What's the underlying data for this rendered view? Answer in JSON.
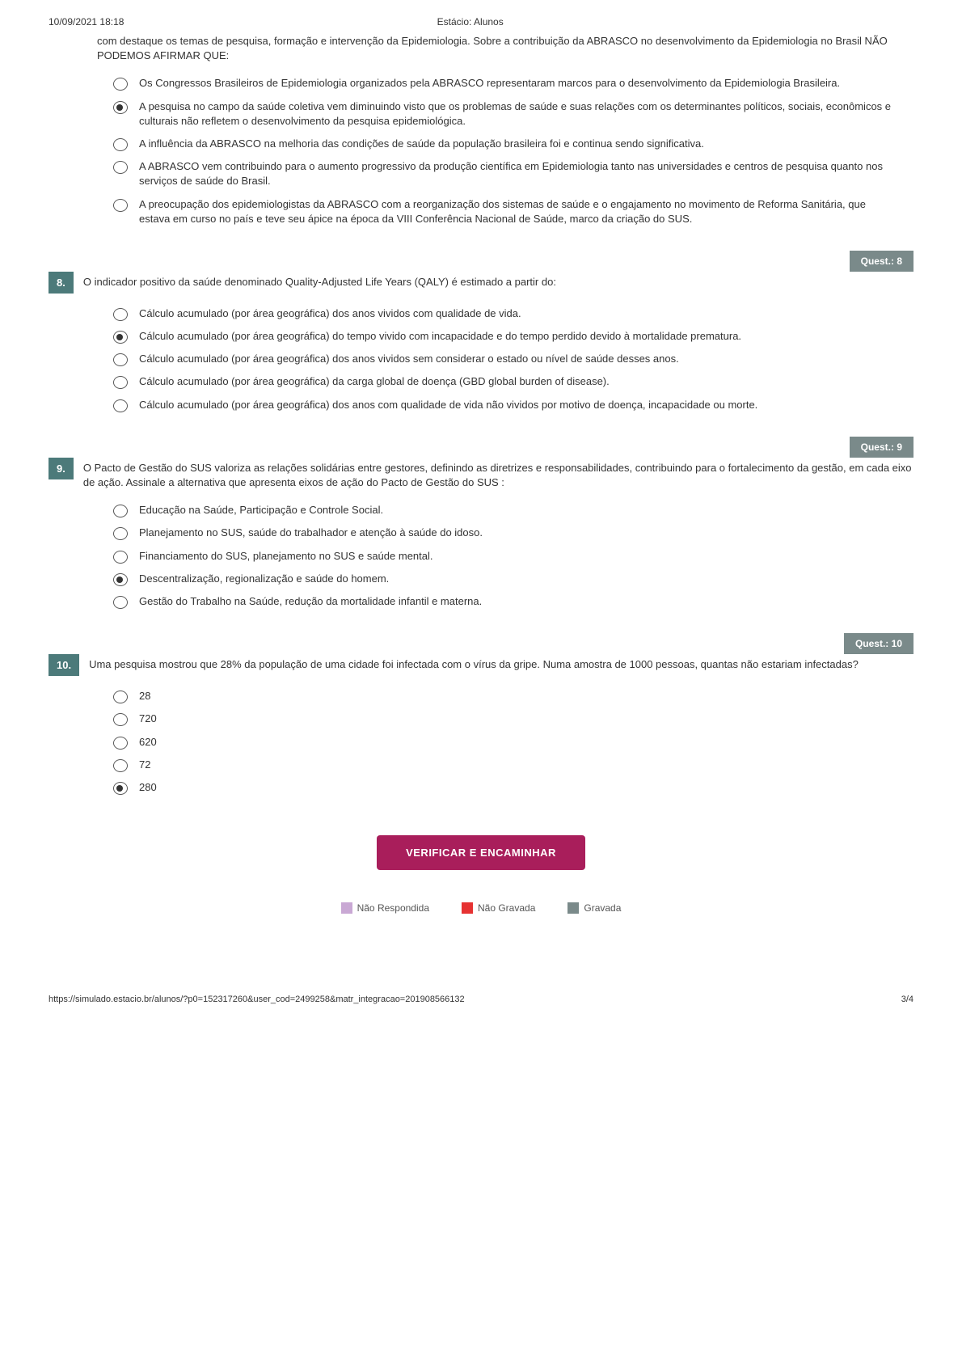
{
  "header": {
    "timestamp": "10/09/2021 18:18",
    "title": "Estácio: Alunos"
  },
  "q7_intro": "com destaque os temas de pesquisa, formação e intervenção da Epidemiologia. Sobre a contribuição da ABRASCO no desenvolvimento da Epidemiologia no Brasil NÃO PODEMOS AFIRMAR QUE:",
  "q7_options": [
    "Os Congressos Brasileiros de Epidemiologia organizados pela ABRASCO representaram marcos para o desenvolvimento da Epidemiologia Brasileira.",
    "A pesquisa no campo da saúde coletiva vem diminuindo visto que os problemas de saúde e suas relações com os determinantes políticos, sociais, econômicos e culturais não refletem o desenvolvimento da pesquisa epidemiológica.",
    "A influência da ABRASCO na melhoria das condições de saúde da população brasileira foi e continua sendo significativa.",
    "A ABRASCO vem contribuindo para o aumento progressivo da produção científica em Epidemiologia tanto nas universidades e centros de pesquisa quanto nos serviços de saúde do Brasil.",
    "A preocupação dos epidemiologistas da ABRASCO com a reorganização dos sistemas de saúde e o engajamento no movimento de Reforma Sanitária, que estava em curso no país e teve seu ápice na época da VIII Conferência Nacional de Saúde, marco da criação do SUS."
  ],
  "q7_selected": 1,
  "q8_badge": "Quest.: 8",
  "q8_number": "8.",
  "q8_text": "O indicador positivo da saúde denominado Quality-Adjusted Life Years (QALY) é estimado a partir do:",
  "q8_options": [
    "Cálculo acumulado (por área geográfica) dos anos vividos com qualidade de vida.",
    "Cálculo acumulado (por área geográfica) do tempo vivido com incapacidade e do tempo perdido devido à mortalidade prematura.",
    "Cálculo acumulado (por área geográfica) dos anos vividos sem considerar o estado ou nível de saúde desses anos.",
    "Cálculo acumulado (por área geográfica) da carga global de doença (GBD global burden of disease).",
    "Cálculo acumulado (por área geográfica) dos anos com qualidade de vida não vividos por motivo de doença, incapacidade ou morte."
  ],
  "q8_selected": 1,
  "q9_badge": "Quest.: 9",
  "q9_number": "9.",
  "q9_text": "O Pacto de Gestão do SUS valoriza as relações solidárias entre gestores, definindo as diretrizes e responsabilidades, contribuindo para o fortalecimento da gestão, em cada eixo de ação. Assinale a alternativa que apresenta eixos de ação do Pacto de Gestão do SUS :",
  "q9_options": [
    "Educação na Saúde, Participação e Controle Social.",
    "Planejamento no SUS, saúde do trabalhador e atenção à saúde do idoso.",
    "Financiamento do SUS, planejamento no SUS e saúde mental.",
    "Descentralização, regionalização e saúde do homem.",
    "Gestão do Trabalho na Saúde, redução da mortalidade infantil e materna."
  ],
  "q9_selected": 3,
  "q10_badge": "Quest.: 10",
  "q10_number": "10.",
  "q10_text": "Uma pesquisa mostrou que 28% da população de uma cidade foi infectada com o vírus da gripe. Numa amostra de 1000 pessoas, quantas não estariam infectadas?",
  "q10_options": [
    "28",
    "720",
    "620",
    "72",
    "280"
  ],
  "q10_selected": 4,
  "verify_label": "VERIFICAR E ENCAMINHAR",
  "legend": {
    "items": [
      {
        "label": "Não Respondida",
        "color": "#c9a8d4"
      },
      {
        "label": "Não Gravada",
        "color": "#e63232"
      },
      {
        "label": "Gravada",
        "color": "#7a8a8a"
      }
    ]
  },
  "footer": {
    "url": "https://simulado.estacio.br/alunos/?p0=152317260&user_cod=2499258&matr_integracao=201908566132",
    "page": "3/4"
  },
  "colors": {
    "badge_bg": "#7a8a8a",
    "qnum_bg": "#4c7a7a",
    "verify_bg": "#a91e5b"
  }
}
